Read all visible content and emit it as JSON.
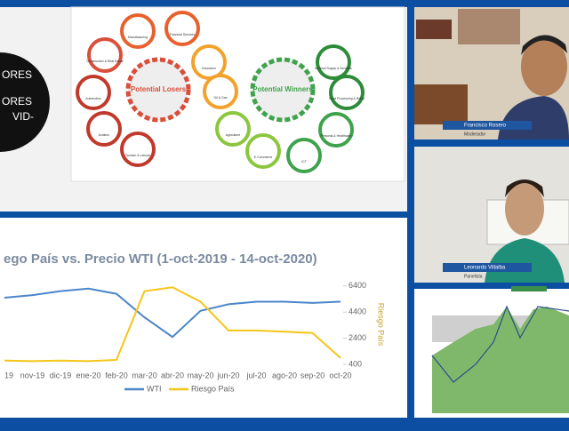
{
  "slide_top": {
    "circle_lines": [
      "ORES",
      "ORES",
      "VID-"
    ],
    "losers": "Potential Losers",
    "winners": "Potential Winners",
    "nodes": [
      "Manufacturing",
      "Financial Services",
      "Education",
      "Oil & Gas",
      "Agriculture",
      "E-Commerce",
      "ICT",
      "Personal & Healthcare",
      "Food Processing & Retail",
      "Medical Supply & Services",
      "Tourism & Leisure",
      "Aviation",
      "Automotive",
      "Construction & Real Estate"
    ]
  },
  "chart": {
    "type": "line",
    "title": "ego País vs. Precio WTI (1-oct-2019 - 14-oct-2020)",
    "categories": [
      "19",
      "nov-19",
      "dic-19",
      "ene-20",
      "feb-20",
      "mar-20",
      "abr-20",
      "may-20",
      "jun-20",
      "jul-20",
      "ago-20",
      "sep-20",
      "oct-20"
    ],
    "series": [
      {
        "name": "WTI",
        "color": "#4a86c8",
        "values": [
          5500,
          5700,
          6000,
          6200,
          5800,
          4000,
          2500,
          4500,
          5000,
          5200,
          5200,
          5100,
          5200
        ]
      },
      {
        "name": "Riesgo País",
        "color": "#f5c518",
        "values": [
          700,
          650,
          700,
          650,
          750,
          6000,
          6300,
          5200,
          3000,
          3000,
          2900,
          2800,
          900
        ]
      }
    ],
    "y_label": "Riesgo País",
    "ylim": [
      0,
      7200
    ],
    "yticks": [
      400,
      2400,
      4400,
      6400
    ]
  },
  "participants": [
    {
      "name": "Francisco Rosero",
      "role": "Moderador"
    },
    {
      "name": "Leonardo Villalba",
      "role": "Panelista"
    }
  ]
}
